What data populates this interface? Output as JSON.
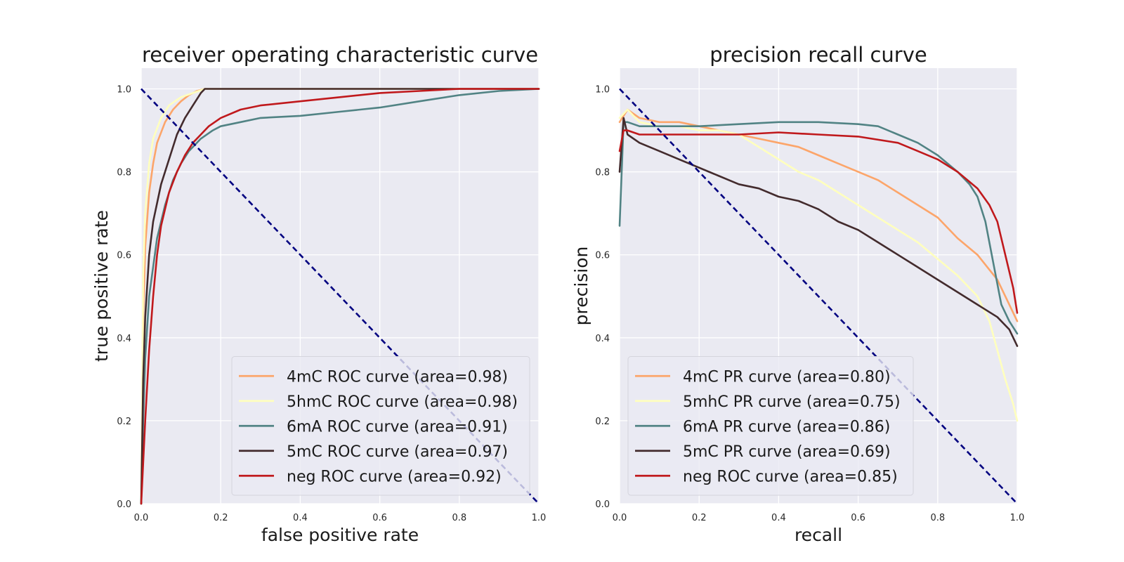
{
  "chart_data": [
    {
      "type": "line",
      "title": "receiver operating characteristic curve",
      "xlabel": "false positive rate",
      "ylabel": "true positive rate",
      "xlim": [
        0,
        1
      ],
      "ylim": [
        0,
        1.05
      ],
      "xticks": [
        "0.0",
        "0.2",
        "0.4",
        "0.6",
        "0.8",
        "1.0"
      ],
      "yticks": [
        "0.0",
        "0.2",
        "0.4",
        "0.6",
        "0.8",
        "1.0"
      ],
      "grid": true,
      "legend_position": "lower-right",
      "reference_line": {
        "x": [
          0,
          1
        ],
        "y": [
          1,
          0
        ],
        "color": "#000080",
        "style": "dashed"
      },
      "series": [
        {
          "name": "4mC ROC curve (area=0.98)",
          "color": "#fca56a",
          "x": [
            0,
            0.005,
            0.01,
            0.02,
            0.03,
            0.04,
            0.06,
            0.08,
            0.1,
            0.12,
            0.14,
            0.16,
            0.2,
            0.5,
            1.0
          ],
          "y": [
            0,
            0.45,
            0.62,
            0.75,
            0.82,
            0.87,
            0.92,
            0.95,
            0.97,
            0.985,
            0.995,
            1.0,
            1.0,
            1.0,
            1.0
          ]
        },
        {
          "name": "5hmC ROC curve (area=0.98)",
          "color": "#ffffbe",
          "x": [
            0,
            0.005,
            0.01,
            0.02,
            0.03,
            0.05,
            0.07,
            0.1,
            0.13,
            0.16,
            0.2,
            0.5,
            1.0
          ],
          "y": [
            0,
            0.55,
            0.7,
            0.82,
            0.88,
            0.93,
            0.96,
            0.98,
            0.99,
            1.0,
            1.0,
            1.0,
            1.0
          ]
        },
        {
          "name": "6mA ROC curve (area=0.91)",
          "color": "#518384",
          "x": [
            0,
            0.005,
            0.01,
            0.02,
            0.04,
            0.06,
            0.08,
            0.1,
            0.12,
            0.15,
            0.18,
            0.2,
            0.25,
            0.3,
            0.4,
            0.5,
            0.6,
            0.7,
            0.8,
            0.9,
            1.0
          ],
          "y": [
            0,
            0.2,
            0.35,
            0.5,
            0.64,
            0.72,
            0.78,
            0.82,
            0.85,
            0.88,
            0.9,
            0.91,
            0.92,
            0.93,
            0.935,
            0.945,
            0.955,
            0.97,
            0.985,
            0.995,
            1.0
          ]
        },
        {
          "name": "5mC ROC curve (area=0.97)",
          "color": "#432b2d",
          "x": [
            0,
            0.005,
            0.01,
            0.02,
            0.03,
            0.05,
            0.07,
            0.09,
            0.11,
            0.13,
            0.15,
            0.16,
            0.2,
            0.5,
            1.0
          ],
          "y": [
            0,
            0.3,
            0.45,
            0.6,
            0.68,
            0.77,
            0.83,
            0.89,
            0.93,
            0.96,
            0.99,
            1.0,
            1.0,
            1.0,
            1.0
          ]
        },
        {
          "name": "neg ROC curve (area=0.92)",
          "color": "#c0191c",
          "x": [
            0,
            0.01,
            0.02,
            0.03,
            0.04,
            0.05,
            0.07,
            0.09,
            0.11,
            0.13,
            0.15,
            0.17,
            0.2,
            0.25,
            0.3,
            0.4,
            0.5,
            0.6,
            0.7,
            0.8,
            1.0
          ],
          "y": [
            0,
            0.2,
            0.37,
            0.5,
            0.6,
            0.67,
            0.75,
            0.8,
            0.84,
            0.87,
            0.89,
            0.91,
            0.93,
            0.95,
            0.96,
            0.97,
            0.98,
            0.99,
            0.995,
            1.0,
            1.0
          ]
        }
      ]
    },
    {
      "type": "line",
      "title": "precision recall curve",
      "xlabel": "recall",
      "ylabel": "precision",
      "xlim": [
        0,
        1
      ],
      "ylim": [
        0,
        1.05
      ],
      "xticks": [
        "0.0",
        "0.2",
        "0.4",
        "0.6",
        "0.8",
        "1.0"
      ],
      "yticks": [
        "0.0",
        "0.2",
        "0.4",
        "0.6",
        "0.8",
        "1.0"
      ],
      "grid": true,
      "legend_position": "lower-left",
      "reference_line": {
        "x": [
          0,
          1
        ],
        "y": [
          1,
          0
        ],
        "color": "#000080",
        "style": "dashed"
      },
      "series": [
        {
          "name": "4mC PR curve (area=0.80)",
          "color": "#fca56a",
          "x": [
            0,
            0.02,
            0.05,
            0.1,
            0.15,
            0.2,
            0.25,
            0.3,
            0.35,
            0.4,
            0.45,
            0.5,
            0.55,
            0.6,
            0.65,
            0.7,
            0.75,
            0.8,
            0.85,
            0.9,
            0.95,
            0.98,
            1.0
          ],
          "y": [
            0.92,
            0.95,
            0.93,
            0.92,
            0.92,
            0.91,
            0.9,
            0.89,
            0.88,
            0.87,
            0.86,
            0.84,
            0.82,
            0.8,
            0.78,
            0.75,
            0.72,
            0.69,
            0.64,
            0.6,
            0.54,
            0.48,
            0.44
          ]
        },
        {
          "name": "5mhC PR curve (area=0.75)",
          "color": "#ffffbe",
          "x": [
            0,
            0.02,
            0.05,
            0.1,
            0.15,
            0.2,
            0.25,
            0.3,
            0.35,
            0.4,
            0.45,
            0.5,
            0.55,
            0.6,
            0.65,
            0.7,
            0.75,
            0.8,
            0.85,
            0.9,
            0.93,
            0.95,
            0.97,
            0.99,
            1.0
          ],
          "y": [
            0.93,
            0.95,
            0.92,
            0.91,
            0.91,
            0.9,
            0.9,
            0.89,
            0.86,
            0.83,
            0.8,
            0.78,
            0.75,
            0.72,
            0.69,
            0.66,
            0.63,
            0.59,
            0.55,
            0.5,
            0.44,
            0.37,
            0.3,
            0.24,
            0.2
          ]
        },
        {
          "name": "6mA PR curve (area=0.86)",
          "color": "#518384",
          "x": [
            0,
            0.01,
            0.02,
            0.05,
            0.1,
            0.2,
            0.3,
            0.4,
            0.5,
            0.6,
            0.65,
            0.7,
            0.75,
            0.8,
            0.85,
            0.88,
            0.9,
            0.92,
            0.94,
            0.96,
            0.98,
            1.0
          ],
          "y": [
            0.67,
            0.92,
            0.92,
            0.91,
            0.91,
            0.91,
            0.915,
            0.92,
            0.92,
            0.915,
            0.91,
            0.89,
            0.87,
            0.84,
            0.8,
            0.77,
            0.74,
            0.68,
            0.58,
            0.48,
            0.44,
            0.41
          ]
        },
        {
          "name": "5mC PR curve (area=0.69)",
          "color": "#432b2d",
          "x": [
            0,
            0.01,
            0.02,
            0.05,
            0.1,
            0.15,
            0.2,
            0.25,
            0.3,
            0.35,
            0.4,
            0.45,
            0.5,
            0.55,
            0.6,
            0.65,
            0.7,
            0.75,
            0.8,
            0.85,
            0.9,
            0.95,
            0.98,
            1.0
          ],
          "y": [
            0.8,
            0.93,
            0.89,
            0.87,
            0.85,
            0.83,
            0.81,
            0.79,
            0.77,
            0.76,
            0.74,
            0.73,
            0.71,
            0.68,
            0.66,
            0.63,
            0.6,
            0.57,
            0.54,
            0.51,
            0.48,
            0.45,
            0.42,
            0.38
          ]
        },
        {
          "name": "neg ROC curve (area=0.85)",
          "color": "#c0191c",
          "x": [
            0,
            0.01,
            0.02,
            0.05,
            0.1,
            0.2,
            0.3,
            0.4,
            0.5,
            0.6,
            0.7,
            0.75,
            0.8,
            0.85,
            0.9,
            0.93,
            0.95,
            0.97,
            0.99,
            1.0
          ],
          "y": [
            0.85,
            0.9,
            0.9,
            0.89,
            0.89,
            0.89,
            0.89,
            0.895,
            0.89,
            0.885,
            0.87,
            0.85,
            0.83,
            0.8,
            0.76,
            0.72,
            0.68,
            0.6,
            0.52,
            0.46
          ]
        }
      ]
    }
  ]
}
